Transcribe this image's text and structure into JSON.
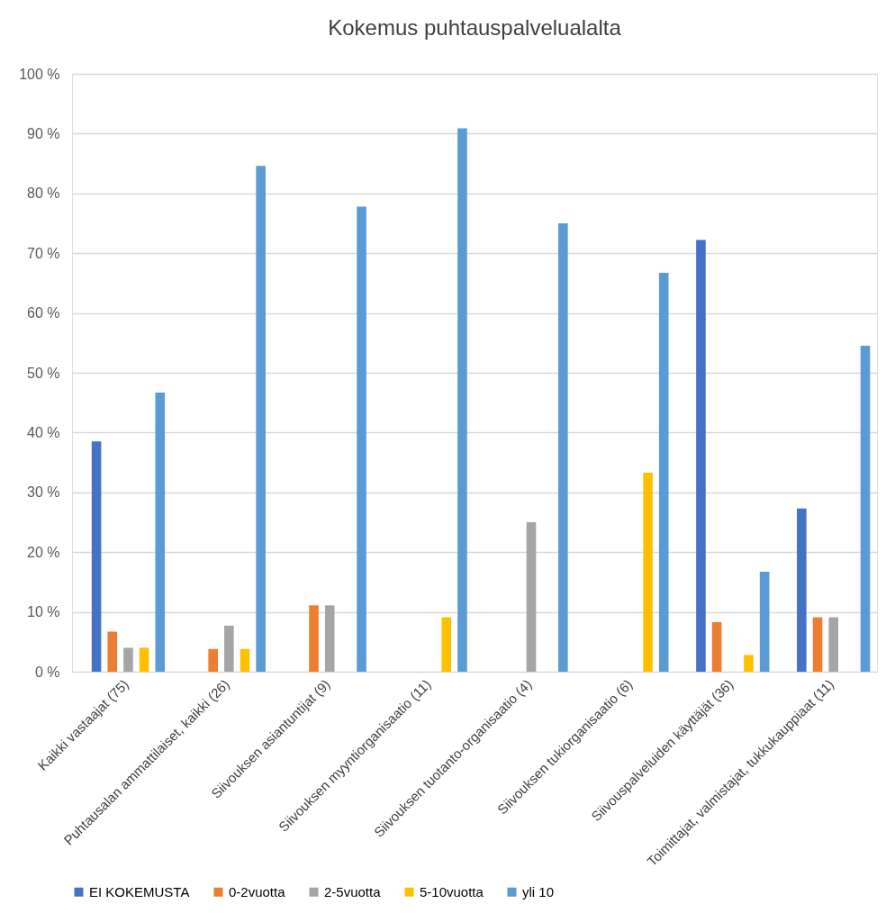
{
  "chart_data": {
    "type": "bar",
    "title": "Kokemus puhtauspalvelualalta",
    "categories": [
      "Kaikki vastaajat (75)",
      "Puhtausalan ammattilaiset, kaikki (26)",
      "Siivouksen asiantuntijat (9)",
      "Siivouksen myyntiorganisaatio (11)",
      "Siivouksen tuotanto-organisaatio (4)",
      "Siivouksen tukiorganisaatio (6)",
      "Siivouspalveluiden käyttäjät (36)",
      "Toimittajat, valmistajat, tukkukauppiaat (11)"
    ],
    "series": [
      {
        "name": "EI KOKEMUSTA",
        "color": "#4472c4",
        "values": [
          38.5,
          0,
          0,
          0,
          0,
          0,
          72.2,
          27.3
        ]
      },
      {
        "name": "0-2vuotta",
        "color": "#ed7d31",
        "values": [
          6.7,
          3.8,
          11.1,
          0,
          0,
          0,
          8.3,
          9.1
        ]
      },
      {
        "name": "2-5vuotta",
        "color": "#a5a5a5",
        "values": [
          4.0,
          7.7,
          11.1,
          0,
          25.0,
          0,
          0,
          9.1
        ]
      },
      {
        "name": "5-10vuotta",
        "color": "#ffc000",
        "values": [
          4.0,
          3.8,
          0,
          9.1,
          0,
          33.3,
          2.8,
          0
        ]
      },
      {
        "name": "yli 10",
        "color": "#5b9bd5",
        "values": [
          46.7,
          84.6,
          77.8,
          90.9,
          75.0,
          66.7,
          16.7,
          54.5
        ]
      }
    ],
    "ylim": [
      0,
      100
    ],
    "yticks": [
      {
        "value": 0,
        "label": "0 %"
      },
      {
        "value": 10,
        "label": "10 %"
      },
      {
        "value": 20,
        "label": "20 %"
      },
      {
        "value": 30,
        "label": "30 %"
      },
      {
        "value": 40,
        "label": "40 %"
      },
      {
        "value": 50,
        "label": "50 %"
      },
      {
        "value": 60,
        "label": "60 %"
      },
      {
        "value": 70,
        "label": "70 %"
      },
      {
        "value": 80,
        "label": "80 %"
      },
      {
        "value": 90,
        "label": "90 %"
      },
      {
        "value": 100,
        "label": "100 %"
      }
    ],
    "grid": "y",
    "legend": "bottom"
  }
}
